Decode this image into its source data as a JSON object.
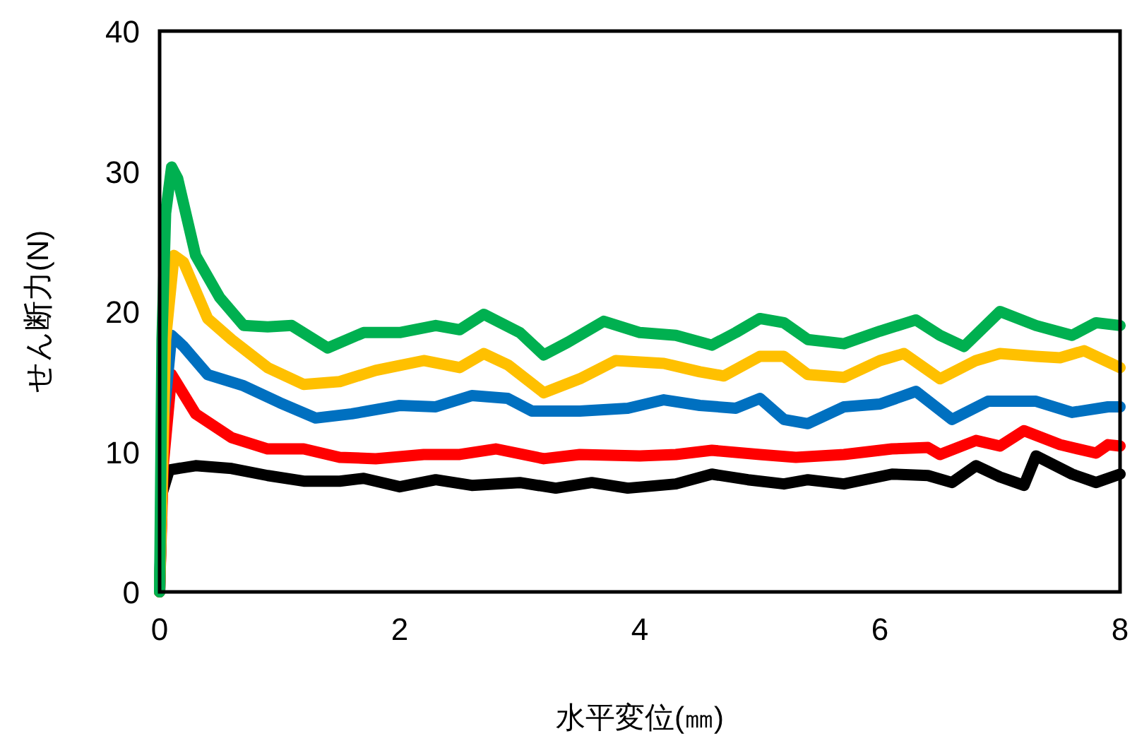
{
  "chart_data": {
    "type": "line",
    "xlabel": "水平変位(㎜)",
    "ylabel": "せん断力(N)",
    "xlim": [
      0,
      8
    ],
    "ylim": [
      0,
      40
    ],
    "xticks": [
      0,
      2,
      4,
      6,
      8
    ],
    "yticks": [
      0,
      10,
      20,
      30,
      40
    ],
    "line_style": "solid",
    "marker": "none",
    "series": [
      {
        "color": "#000000",
        "x": [
          0,
          0.02,
          0.08,
          0.3,
          0.6,
          0.9,
          1.2,
          1.5,
          1.7,
          2.0,
          2.3,
          2.6,
          3.0,
          3.3,
          3.6,
          3.9,
          4.3,
          4.6,
          4.9,
          5.2,
          5.4,
          5.7,
          6.1,
          6.4,
          6.6,
          6.8,
          7.0,
          7.2,
          7.3,
          7.6,
          7.8,
          8
        ],
        "values": [
          0,
          7,
          8.7,
          9,
          8.8,
          8.3,
          7.9,
          7.9,
          8.1,
          7.5,
          8,
          7.6,
          7.8,
          7.4,
          7.8,
          7.4,
          7.7,
          8.4,
          8,
          7.7,
          8,
          7.7,
          8.4,
          8.3,
          7.8,
          9,
          8.2,
          7.6,
          9.7,
          8.4,
          7.8,
          8.4
        ]
      },
      {
        "color": "#ff0000",
        "x": [
          0,
          0.03,
          0.1,
          0.3,
          0.6,
          0.9,
          1.2,
          1.5,
          1.8,
          2.2,
          2.5,
          2.8,
          3.2,
          3.5,
          4.0,
          4.3,
          4.6,
          5.0,
          5.3,
          5.7,
          6.1,
          6.4,
          6.5,
          6.8,
          7.0,
          7.2,
          7.5,
          7.8,
          7.9,
          8
        ],
        "values": [
          0,
          9,
          15.5,
          12.7,
          11,
          10.2,
          10.2,
          9.6,
          9.5,
          9.8,
          9.8,
          10.2,
          9.5,
          9.8,
          9.7,
          9.8,
          10.1,
          9.8,
          9.6,
          9.8,
          10.2,
          10.3,
          9.8,
          10.8,
          10.4,
          11.5,
          10.5,
          9.9,
          10.5,
          10.4
        ]
      },
      {
        "color": "#0070c0",
        "x": [
          0,
          0.03,
          0.1,
          0.2,
          0.4,
          0.7,
          1.0,
          1.3,
          1.6,
          2.0,
          2.3,
          2.6,
          2.9,
          3.1,
          3.5,
          3.9,
          4.2,
          4.5,
          4.8,
          5.0,
          5.2,
          5.4,
          5.7,
          6.0,
          6.3,
          6.6,
          6.9,
          7.3,
          7.6,
          7.9,
          8
        ],
        "values": [
          0,
          12,
          18.3,
          17.5,
          15.5,
          14.7,
          13.5,
          12.4,
          12.7,
          13.3,
          13.2,
          14,
          13.8,
          12.9,
          12.9,
          13.1,
          13.7,
          13.3,
          13.1,
          13.8,
          12.3,
          12,
          13.2,
          13.4,
          14.3,
          12.3,
          13.6,
          13.6,
          12.8,
          13.2,
          13.2
        ]
      },
      {
        "color": "#ffc000",
        "x": [
          0,
          0.02,
          0.05,
          0.12,
          0.2,
          0.4,
          0.6,
          0.9,
          1.2,
          1.5,
          1.8,
          2.2,
          2.5,
          2.7,
          2.9,
          3.2,
          3.5,
          3.8,
          4.2,
          4.5,
          4.7,
          5.0,
          5.2,
          5.4,
          5.7,
          6.0,
          6.2,
          6.5,
          6.8,
          7.0,
          7.3,
          7.5,
          7.7,
          8
        ],
        "values": [
          0,
          7,
          18,
          24,
          23.5,
          19.5,
          18,
          16,
          14.8,
          15,
          15.8,
          16.5,
          16,
          17,
          16.2,
          14.2,
          15.2,
          16.5,
          16.3,
          15.7,
          15.4,
          16.8,
          16.8,
          15.5,
          15.3,
          16.5,
          17,
          15.2,
          16.5,
          17,
          16.8,
          16.7,
          17.2,
          16
        ]
      },
      {
        "color": "#00b050",
        "x": [
          0,
          0.02,
          0.05,
          0.1,
          0.15,
          0.3,
          0.5,
          0.7,
          0.9,
          1.1,
          1.4,
          1.7,
          2.0,
          2.3,
          2.5,
          2.7,
          3.0,
          3.2,
          3.4,
          3.7,
          4.0,
          4.3,
          4.6,
          4.8,
          5.0,
          5.2,
          5.4,
          5.7,
          6.0,
          6.3,
          6.5,
          6.7,
          7.0,
          7.3,
          7.6,
          7.8,
          8
        ],
        "values": [
          0,
          18,
          27,
          30.3,
          29.5,
          24,
          21,
          19,
          18.9,
          19,
          17.4,
          18.5,
          18.5,
          19,
          18.7,
          19.8,
          18.5,
          16.9,
          17.8,
          19.3,
          18.5,
          18.3,
          17.6,
          18.5,
          19.5,
          19.2,
          18,
          17.7,
          18.6,
          19.4,
          18.3,
          17.5,
          20,
          19,
          18.3,
          19.2,
          19
        ]
      }
    ]
  }
}
